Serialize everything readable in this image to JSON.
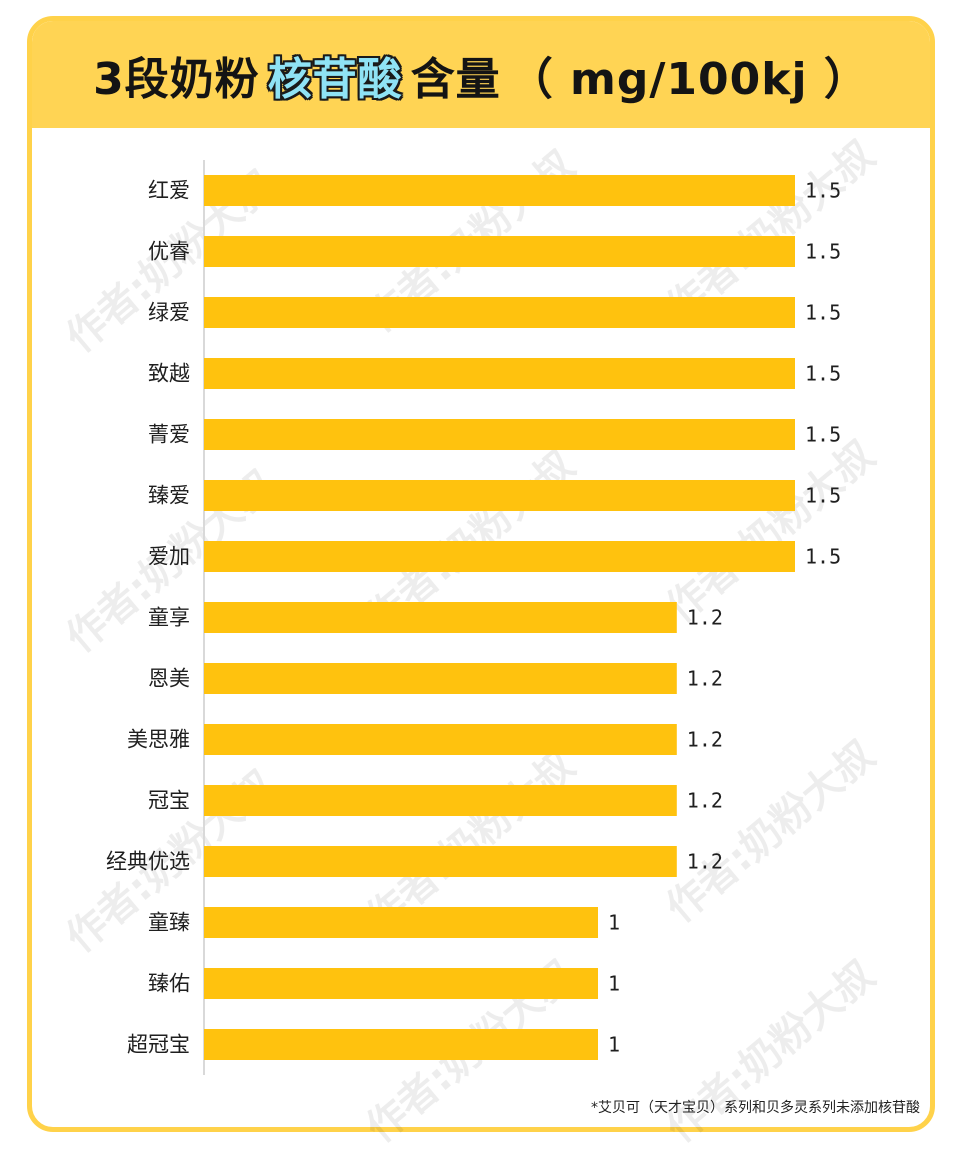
{
  "title": {
    "prefix": "3段奶粉",
    "highlight": "核苷酸",
    "suffix": "含量",
    "unit": "（ mg/100kj ）"
  },
  "watermark_text": "作者:奶粉大叔",
  "footnote": "*艾贝可（天才宝贝）系列和贝多灵系列未添加核苷酸",
  "colors": {
    "bar": "#ffc20e",
    "title_band": "#ffd454",
    "frame": "#ffd24a",
    "highlight": "#8fe3f5"
  },
  "chart_data": {
    "type": "bar",
    "orientation": "horizontal",
    "categories": [
      "红爱",
      "优睿",
      "绿爱",
      "致越",
      "菁爱",
      "臻爱",
      "爱加",
      "童享",
      "恩美",
      "美思雅",
      "冠宝",
      "经典优选",
      "童臻",
      "臻佑",
      "超冠宝"
    ],
    "values": [
      1.5,
      1.5,
      1.5,
      1.5,
      1.5,
      1.5,
      1.5,
      1.2,
      1.2,
      1.2,
      1.2,
      1.2,
      1,
      1,
      1
    ],
    "value_labels": [
      "1.5",
      "1.5",
      "1.5",
      "1.5",
      "1.5",
      "1.5",
      "1.5",
      "1.2",
      "1.2",
      "1.2",
      "1.2",
      "1.2",
      "1",
      "1",
      "1"
    ],
    "xlim": [
      0,
      1.5
    ],
    "grid": false,
    "title": "3段奶粉核苷酸含量（ mg/100kj ）"
  }
}
